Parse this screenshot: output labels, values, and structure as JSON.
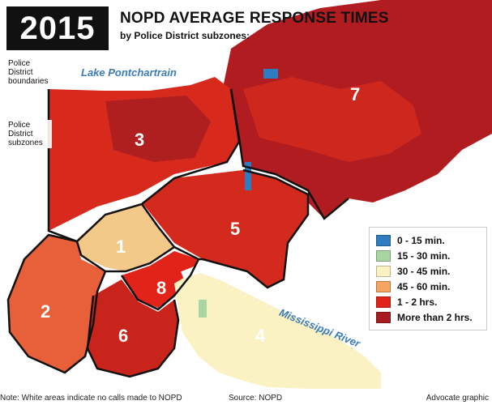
{
  "header": {
    "year": "2015",
    "title": "NOPD AVERAGE RESPONSE TIMES",
    "subtitle": "by Police District subzones:"
  },
  "callouts": {
    "boundaries": "Police District boundaries",
    "subzones": "Police District subzones"
  },
  "water_labels": {
    "lake": "Lake Pontchartrain",
    "river": "Mississippi River"
  },
  "districts": [
    "1",
    "2",
    "3",
    "4",
    "5",
    "6",
    "7",
    "8"
  ],
  "legend": [
    {
      "label": "0 - 15 min.",
      "color": "#2f7cc0"
    },
    {
      "label": "15 - 30 min.",
      "color": "#a8d5a2"
    },
    {
      "label": "30 - 45 min.",
      "color": "#fbf2c4"
    },
    {
      "label": "45 - 60 min.",
      "color": "#f6a561"
    },
    {
      "label": "1 - 2 hrs.",
      "color": "#e2231a"
    },
    {
      "label": "More than 2 hrs.",
      "color": "#a51d21"
    }
  ],
  "footer": {
    "note": "Note: White areas indicate no calls made to NOPD",
    "source": "Source: NOPD",
    "credit": "Advocate graphic"
  }
}
